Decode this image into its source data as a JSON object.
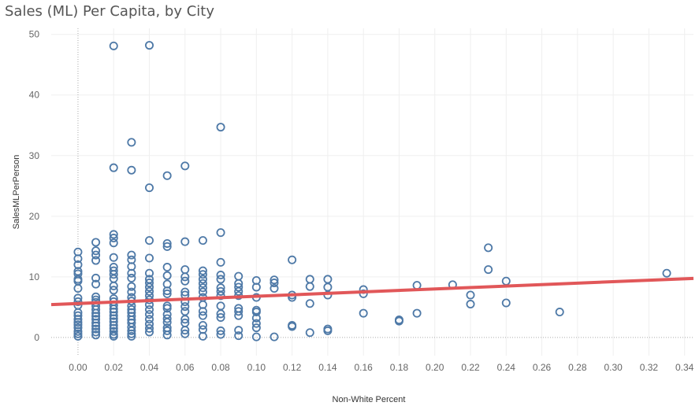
{
  "title": "Sales (ML) Per Capita, by City",
  "chart_data": {
    "type": "scatter",
    "title": "Sales (ML) Per Capita, by City",
    "xlabel": "Non-White Percent",
    "ylabel": "SalesMLPerPerson",
    "xlim": [
      -0.015,
      0.345
    ],
    "ylim": [
      -3,
      51
    ],
    "x_ticks": [
      "0.00",
      "0.02",
      "0.04",
      "0.06",
      "0.08",
      "0.10",
      "0.12",
      "0.14",
      "0.16",
      "0.18",
      "0.20",
      "0.22",
      "0.24",
      "0.26",
      "0.28",
      "0.30",
      "0.32",
      "0.34"
    ],
    "y_ticks": [
      "0",
      "10",
      "20",
      "30",
      "40",
      "50"
    ],
    "grid": true,
    "marker_color": "#4e79a7",
    "trend_color": "#e15759",
    "trend_line": {
      "intercept": 5.6,
      "slope": 12.0,
      "x_start": -0.015,
      "x_end": 0.345
    },
    "points": [
      [
        0.0,
        14.1
      ],
      [
        0.0,
        13.0
      ],
      [
        0.0,
        12.0
      ],
      [
        0.0,
        10.9
      ],
      [
        0.0,
        10.5
      ],
      [
        0.0,
        9.6
      ],
      [
        0.0,
        9.3
      ],
      [
        0.0,
        8.1
      ],
      [
        0.0,
        6.5
      ],
      [
        0.0,
        5.9
      ],
      [
        0.0,
        5.3
      ],
      [
        0.0,
        4.1
      ],
      [
        0.0,
        3.6
      ],
      [
        0.0,
        3.0
      ],
      [
        0.0,
        2.5
      ],
      [
        0.0,
        2.1
      ],
      [
        0.0,
        1.6
      ],
      [
        0.0,
        1.0
      ],
      [
        0.0,
        0.6
      ],
      [
        0.0,
        0.2
      ],
      [
        0.01,
        15.7
      ],
      [
        0.01,
        14.3
      ],
      [
        0.01,
        13.6
      ],
      [
        0.01,
        12.7
      ],
      [
        0.01,
        9.8
      ],
      [
        0.01,
        8.8
      ],
      [
        0.01,
        6.7
      ],
      [
        0.01,
        6.2
      ],
      [
        0.01,
        5.8
      ],
      [
        0.01,
        5.2
      ],
      [
        0.01,
        4.6
      ],
      [
        0.01,
        4.0
      ],
      [
        0.01,
        3.5
      ],
      [
        0.01,
        3.0
      ],
      [
        0.01,
        2.4
      ],
      [
        0.01,
        1.9
      ],
      [
        0.01,
        1.4
      ],
      [
        0.01,
        0.9
      ],
      [
        0.01,
        0.4
      ],
      [
        0.02,
        48.1
      ],
      [
        0.02,
        28.0
      ],
      [
        0.02,
        17.0
      ],
      [
        0.02,
        16.4
      ],
      [
        0.02,
        15.6
      ],
      [
        0.02,
        13.2
      ],
      [
        0.02,
        11.6
      ],
      [
        0.02,
        11.0
      ],
      [
        0.02,
        10.4
      ],
      [
        0.02,
        9.7
      ],
      [
        0.02,
        8.5
      ],
      [
        0.02,
        7.8
      ],
      [
        0.02,
        6.4
      ],
      [
        0.02,
        5.9
      ],
      [
        0.02,
        5.3
      ],
      [
        0.02,
        4.7
      ],
      [
        0.02,
        4.2
      ],
      [
        0.02,
        3.6
      ],
      [
        0.02,
        3.1
      ],
      [
        0.02,
        2.6
      ],
      [
        0.02,
        2.0
      ],
      [
        0.02,
        1.5
      ],
      [
        0.02,
        1.0
      ],
      [
        0.02,
        0.5
      ],
      [
        0.02,
        0.2
      ],
      [
        0.03,
        32.2
      ],
      [
        0.03,
        27.6
      ],
      [
        0.03,
        13.6
      ],
      [
        0.03,
        12.8
      ],
      [
        0.03,
        11.7
      ],
      [
        0.03,
        10.6
      ],
      [
        0.03,
        9.8
      ],
      [
        0.03,
        8.4
      ],
      [
        0.03,
        7.5
      ],
      [
        0.03,
        6.6
      ],
      [
        0.03,
        6.0
      ],
      [
        0.03,
        5.2
      ],
      [
        0.03,
        4.6
      ],
      [
        0.03,
        4.1
      ],
      [
        0.03,
        3.5
      ],
      [
        0.03,
        2.9
      ],
      [
        0.03,
        2.4
      ],
      [
        0.03,
        1.7
      ],
      [
        0.03,
        1.1
      ],
      [
        0.03,
        0.6
      ],
      [
        0.03,
        0.2
      ],
      [
        0.04,
        48.2
      ],
      [
        0.04,
        24.7
      ],
      [
        0.04,
        16.0
      ],
      [
        0.04,
        13.1
      ],
      [
        0.04,
        10.6
      ],
      [
        0.04,
        9.6
      ],
      [
        0.04,
        9.0
      ],
      [
        0.04,
        8.3
      ],
      [
        0.04,
        7.6
      ],
      [
        0.04,
        6.9
      ],
      [
        0.04,
        6.2
      ],
      [
        0.04,
        5.4
      ],
      [
        0.04,
        4.6
      ],
      [
        0.04,
        3.8
      ],
      [
        0.04,
        3.0
      ],
      [
        0.04,
        2.2
      ],
      [
        0.04,
        1.5
      ],
      [
        0.04,
        0.9
      ],
      [
        0.05,
        26.7
      ],
      [
        0.05,
        15.5
      ],
      [
        0.05,
        15.0
      ],
      [
        0.05,
        11.6
      ],
      [
        0.05,
        10.2
      ],
      [
        0.05,
        8.8
      ],
      [
        0.05,
        7.7
      ],
      [
        0.05,
        7.2
      ],
      [
        0.05,
        5.2
      ],
      [
        0.05,
        4.8
      ],
      [
        0.05,
        3.8
      ],
      [
        0.05,
        3.1
      ],
      [
        0.05,
        2.5
      ],
      [
        0.05,
        1.6
      ],
      [
        0.05,
        1.1
      ],
      [
        0.05,
        0.4
      ],
      [
        0.06,
        28.3
      ],
      [
        0.06,
        15.8
      ],
      [
        0.06,
        11.2
      ],
      [
        0.06,
        10.0
      ],
      [
        0.06,
        9.3
      ],
      [
        0.06,
        7.5
      ],
      [
        0.06,
        7.0
      ],
      [
        0.06,
        5.9
      ],
      [
        0.06,
        5.1
      ],
      [
        0.06,
        4.3
      ],
      [
        0.06,
        3.0
      ],
      [
        0.06,
        2.4
      ],
      [
        0.06,
        1.2
      ],
      [
        0.06,
        0.6
      ],
      [
        0.07,
        16.0
      ],
      [
        0.07,
        11.0
      ],
      [
        0.07,
        10.4
      ],
      [
        0.07,
        9.6
      ],
      [
        0.07,
        8.9
      ],
      [
        0.07,
        8.2
      ],
      [
        0.07,
        7.5
      ],
      [
        0.07,
        6.6
      ],
      [
        0.07,
        5.4
      ],
      [
        0.07,
        4.3
      ],
      [
        0.07,
        3.6
      ],
      [
        0.07,
        2.0
      ],
      [
        0.07,
        1.3
      ],
      [
        0.07,
        0.2
      ],
      [
        0.08,
        34.7
      ],
      [
        0.08,
        17.3
      ],
      [
        0.08,
        12.4
      ],
      [
        0.08,
        10.3
      ],
      [
        0.08,
        9.6
      ],
      [
        0.08,
        8.2
      ],
      [
        0.08,
        7.6
      ],
      [
        0.08,
        6.9
      ],
      [
        0.08,
        5.2
      ],
      [
        0.08,
        3.9
      ],
      [
        0.08,
        3.3
      ],
      [
        0.08,
        1.1
      ],
      [
        0.08,
        0.5
      ],
      [
        0.09,
        10.1
      ],
      [
        0.09,
        8.9
      ],
      [
        0.09,
        8.3
      ],
      [
        0.09,
        7.6
      ],
      [
        0.09,
        6.9
      ],
      [
        0.09,
        4.8
      ],
      [
        0.09,
        4.3
      ],
      [
        0.09,
        3.6
      ],
      [
        0.09,
        1.2
      ],
      [
        0.09,
        0.3
      ],
      [
        0.1,
        9.4
      ],
      [
        0.1,
        8.3
      ],
      [
        0.1,
        6.6
      ],
      [
        0.1,
        4.5
      ],
      [
        0.1,
        4.2
      ],
      [
        0.1,
        3.2
      ],
      [
        0.1,
        2.3
      ],
      [
        0.1,
        1.6
      ],
      [
        0.1,
        0.1
      ],
      [
        0.11,
        9.5
      ],
      [
        0.11,
        9.0
      ],
      [
        0.11,
        8.1
      ],
      [
        0.11,
        0.1
      ],
      [
        0.12,
        12.8
      ],
      [
        0.12,
        7.0
      ],
      [
        0.12,
        6.6
      ],
      [
        0.12,
        2.0
      ],
      [
        0.12,
        1.8
      ],
      [
        0.13,
        9.6
      ],
      [
        0.13,
        8.4
      ],
      [
        0.13,
        5.6
      ],
      [
        0.13,
        0.8
      ],
      [
        0.14,
        9.6
      ],
      [
        0.14,
        8.3
      ],
      [
        0.14,
        7.0
      ],
      [
        0.14,
        1.4
      ],
      [
        0.14,
        1.1
      ],
      [
        0.16,
        7.9
      ],
      [
        0.16,
        7.2
      ],
      [
        0.16,
        4.0
      ],
      [
        0.18,
        2.9
      ],
      [
        0.18,
        2.7
      ],
      [
        0.19,
        8.6
      ],
      [
        0.19,
        4.0
      ],
      [
        0.21,
        8.7
      ],
      [
        0.22,
        7.0
      ],
      [
        0.22,
        5.5
      ],
      [
        0.23,
        14.8
      ],
      [
        0.23,
        11.2
      ],
      [
        0.24,
        9.3
      ],
      [
        0.24,
        5.7
      ],
      [
        0.27,
        4.2
      ],
      [
        0.33,
        10.6
      ]
    ]
  }
}
